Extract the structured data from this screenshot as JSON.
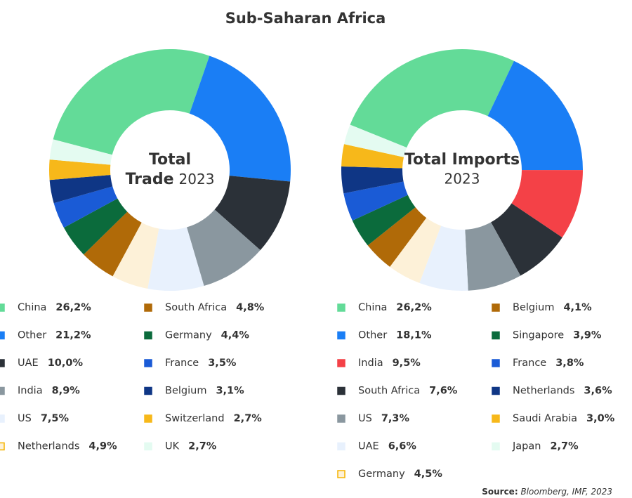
{
  "title": "Sub-Saharan Africa",
  "source": {
    "label": "Source:",
    "text": "Bloomberg, IMF, 2023"
  },
  "chart_data": [
    {
      "type": "pie",
      "center_label": [
        "Total",
        "Trade"
      ],
      "center_year": "2023",
      "categories": [
        "China",
        "Other",
        "UAE",
        "India",
        "US",
        "Netherlands",
        "South Africa",
        "Germany",
        "France",
        "Belgium",
        "Switzerland",
        "UK"
      ],
      "values": [
        26.2,
        21.2,
        10.0,
        8.9,
        7.5,
        4.9,
        4.8,
        4.4,
        3.5,
        3.1,
        2.7,
        2.7
      ],
      "value_labels": [
        "26,2%",
        "21,2%",
        "10,0%",
        "8,9%",
        "7,5%",
        "4,9%",
        "4,8%",
        "4,4%",
        "3,5%",
        "3,1%",
        "2,7%",
        "2,7%"
      ],
      "colors": [
        "#63db98",
        "#1a7ef5",
        "#2b3138",
        "#8a979f",
        "#e8f1fd",
        "#fdf1d8",
        "#b06a08",
        "#0b6b3c",
        "#1a5bd6",
        "#0f3685",
        "#f7b81a",
        "#e4fbf1"
      ]
    },
    {
      "type": "pie",
      "center_label": [
        "Total Imports"
      ],
      "center_year": "2023",
      "categories": [
        "China",
        "Other",
        "India",
        "South Africa",
        "US",
        "UAE",
        "Germany",
        "Belgium",
        "Singapore",
        "France",
        "Netherlands",
        "Saudi Arabia",
        "Japan"
      ],
      "values": [
        26.2,
        18.1,
        9.5,
        7.6,
        7.3,
        6.6,
        4.5,
        4.1,
        3.9,
        3.8,
        3.6,
        3.0,
        2.7
      ],
      "value_labels": [
        "26,2%",
        "18,1%",
        "9,5%",
        "7,6%",
        "7,3%",
        "6,6%",
        "4,5%",
        "4,1%",
        "3,9%",
        "3,8%",
        "3,6%",
        "3,0%",
        "2,7%"
      ],
      "colors": [
        "#63db98",
        "#1a7ef5",
        "#f44147",
        "#2b3138",
        "#8a979f",
        "#e8f1fd",
        "#fdf1d8",
        "#b06a08",
        "#0b6b3c",
        "#1a5bd6",
        "#0f3685",
        "#f7b81a",
        "#e4fbf1"
      ]
    }
  ]
}
